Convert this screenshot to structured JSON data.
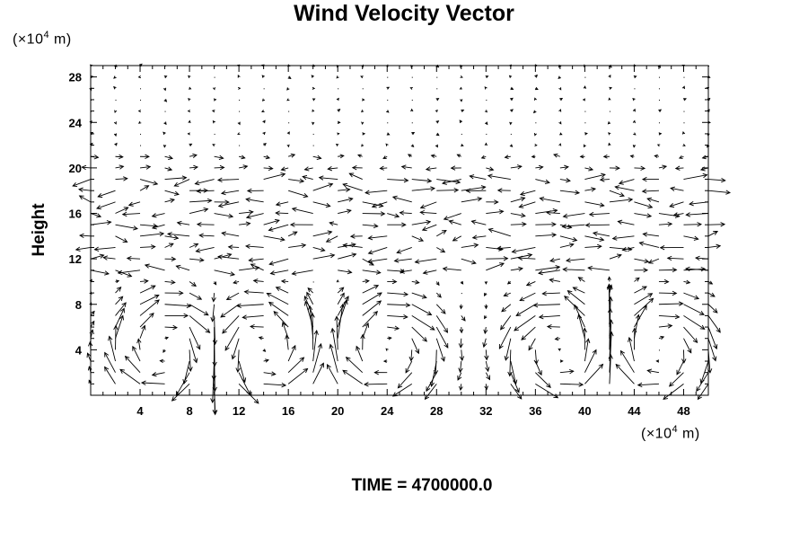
{
  "chart_data": {
    "type": "vector-field",
    "title": "Wind Velocity Vector",
    "ylabel": "Height",
    "x_unit": {
      "prefix": "(×10",
      "exp": "4",
      "suffix": " m)"
    },
    "y_unit": {
      "prefix": "(×10",
      "exp": "4",
      "suffix": " m)"
    },
    "xlim": [
      0,
      50
    ],
    "ylim": [
      0,
      29
    ],
    "x_ticks": [
      4,
      8,
      12,
      16,
      20,
      24,
      28,
      32,
      36,
      40,
      44,
      48
    ],
    "y_ticks": [
      4,
      8,
      12,
      16,
      20,
      24,
      28
    ],
    "x_tick_labels": [
      "4",
      "8",
      "12",
      "16",
      "20",
      "24",
      "28",
      "32",
      "36",
      "40",
      "44",
      "48"
    ],
    "y_tick_labels": [
      "4",
      "8",
      "12",
      "16",
      "20",
      "24",
      "28"
    ],
    "grid_x": [
      0,
      50,
      2
    ],
    "grid_y": [
      1,
      29,
      1
    ],
    "vortex_centers": [
      6,
      14,
      24,
      38,
      46
    ],
    "vortex_radius": 4,
    "vortex_height": 4,
    "strong_layer_top": 10,
    "jet_layer": [
      11,
      20
    ],
    "footer_text": "TIME = 4700000.0"
  }
}
